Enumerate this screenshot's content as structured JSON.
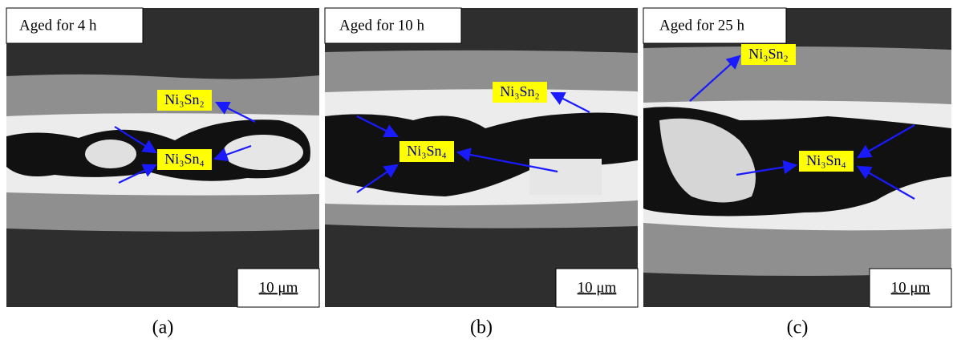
{
  "panels": [
    {
      "title": "Aged for 4 h",
      "labels": [
        "Ni₃Sn₂",
        "Ni₃Sn₄"
      ],
      "scale_bar": "10 μm",
      "caption": "(a)"
    },
    {
      "title": "Aged for 10 h",
      "labels": [
        "Ni₃Sn₂",
        "Ni₃Sn₄"
      ],
      "scale_bar": "10 μm",
      "caption": "(b)"
    },
    {
      "title": "Aged for 25 h",
      "labels": [
        "Ni₃Sn₂",
        "Ni₃Sn₄"
      ],
      "scale_bar": "10 μm",
      "caption": "(c)"
    }
  ]
}
